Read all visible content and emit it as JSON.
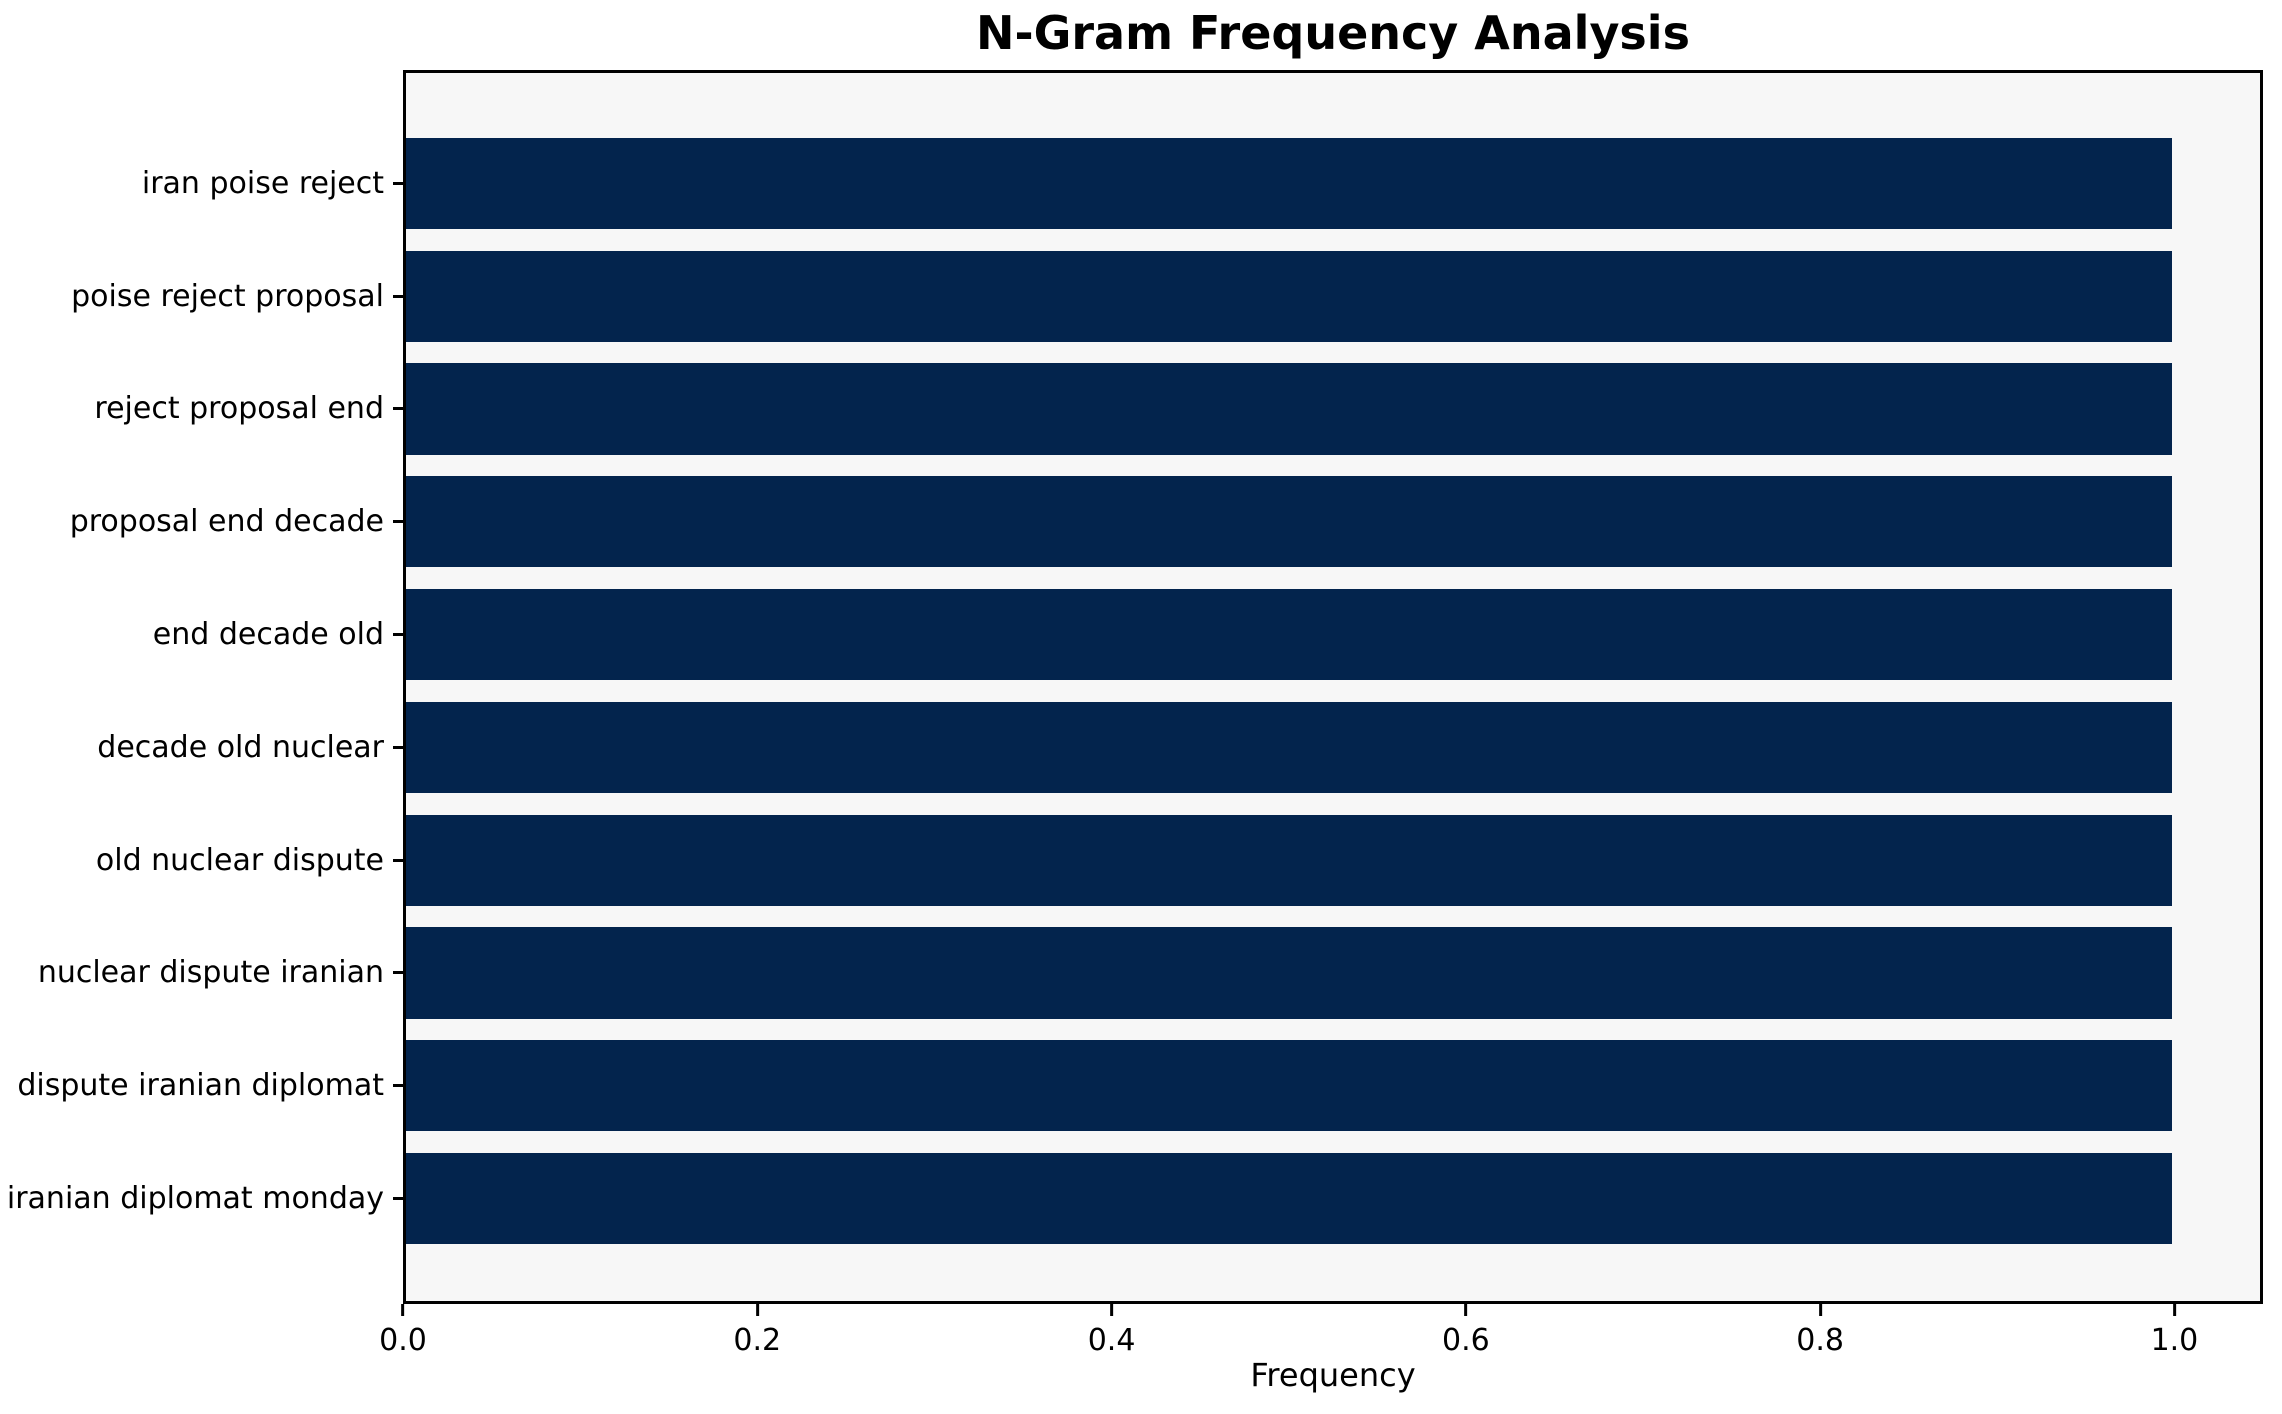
{
  "chart_data": {
    "type": "bar",
    "orientation": "horizontal",
    "title": "N-Gram Frequency Analysis",
    "xlabel": "Frequency",
    "ylabel": "",
    "categories": [
      "iran poise reject",
      "poise reject proposal",
      "reject proposal end",
      "proposal end decade",
      "end decade old",
      "decade old nuclear",
      "old nuclear dispute",
      "nuclear dispute iranian",
      "dispute iranian diplomat",
      "iranian diplomat monday"
    ],
    "values": [
      1.0,
      1.0,
      1.0,
      1.0,
      1.0,
      1.0,
      1.0,
      1.0,
      1.0,
      1.0
    ],
    "xlim": [
      0,
      1.05
    ],
    "xticks": [
      0.0,
      0.2,
      0.4,
      0.6,
      0.8,
      1.0
    ],
    "xtick_labels": [
      "0.0",
      "0.2",
      "0.4",
      "0.6",
      "0.8",
      "1.0"
    ],
    "grid": false,
    "legend": null,
    "colors": {
      "bar": "#03244d",
      "plot_background": "#f7f7f7",
      "figure_background": "#ffffff",
      "spine": "#000000",
      "text": "#000000"
    }
  }
}
